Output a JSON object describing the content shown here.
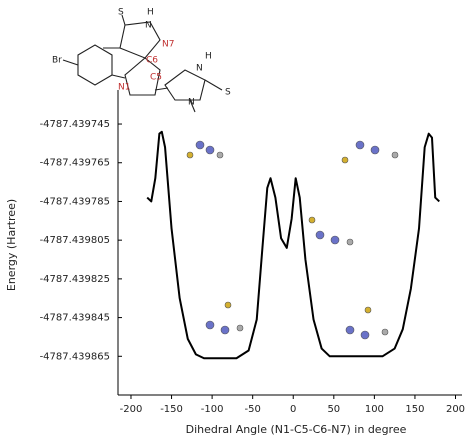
{
  "chart_data": {
    "type": "line",
    "x_label": "Dihedral Angle (N1-C5-C6-N7) in degree",
    "y_label": "Energy    (Hartree)",
    "structure_labels": [
      "S",
      "H",
      "N",
      "N7",
      "C6",
      "Br",
      "C5",
      "N1",
      "N",
      "H",
      "S",
      "N"
    ],
    "xlim": [
      -216,
      208
    ],
    "ylim": [
      -4787.439885,
      -4787.43973
    ],
    "xticks": [
      -200,
      -150,
      -100,
      -50,
      0,
      50,
      100,
      150,
      200
    ],
    "yticks": [
      -4787.439745,
      -4787.439765,
      -4787.439785,
      -4787.439805,
      -4787.439825,
      -4787.439845,
      -4787.439865
    ],
    "series": [
      {
        "color": "#000000",
        "x": [
          -180,
          -175,
          -170,
          -165,
          -162,
          -158,
          -150,
          -140,
          -130,
          -120,
          -110,
          -70,
          -55,
          -45,
          -38,
          -32,
          -28,
          -22,
          -15,
          -8,
          -2,
          3,
          8,
          15,
          25,
          35,
          45,
          110,
          125,
          135,
          145,
          155,
          162,
          167,
          171,
          175,
          180
        ],
        "values": [
          -4787.439783,
          -4787.439785,
          -4787.439773,
          -4787.43975,
          -4787.439749,
          -4787.439757,
          -4787.439799,
          -4787.439835,
          -4787.439856,
          -4787.439864,
          -4787.439866,
          -4787.439866,
          -4787.439862,
          -4787.439846,
          -4787.439809,
          -4787.439778,
          -4787.439773,
          -4787.439783,
          -4787.439804,
          -4787.439809,
          -4787.439794,
          -4787.439773,
          -4787.439783,
          -4787.439815,
          -4787.439846,
          -4787.439861,
          -4787.439865,
          -4787.439865,
          -4787.439861,
          -4787.439851,
          -4787.43983,
          -4787.439799,
          -4787.439757,
          -4787.43975,
          -4787.439752,
          -4787.439783,
          -4787.439785
        ]
      }
    ]
  }
}
